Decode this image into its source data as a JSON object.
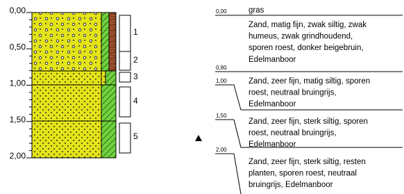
{
  "depth_axis": [
    "0,00",
    "0,50",
    "1,00",
    "1,50",
    "2,00"
  ],
  "samples": [
    "1",
    "2",
    "3",
    "4",
    "5"
  ],
  "boundaries": [
    "0,00",
    "0,80",
    "1,00",
    "1,50",
    "2,00"
  ],
  "descriptions": [
    [
      "gras"
    ],
    [
      "Zand, matig fijn, zwak siltig, zwak",
      "humeus, zwak grindhoudend,",
      "sporen roest, donker beigebruin,",
      "Edelmanboor"
    ],
    [
      "Zand, zeer fijn, matig siltig, sporen",
      "roest, neutraal bruingrijs,",
      "Edelmanboor"
    ],
    [
      "Zand, zeer fijn, sterk siltig, sporen",
      "roest, neutraal bruingrijs,",
      "Edelmanboor"
    ],
    [
      "Zand, zeer fijn, sterk siltig, resten",
      "planten, sporen roest, neutraal",
      "bruingrijs,  Edelmanboor"
    ]
  ]
}
